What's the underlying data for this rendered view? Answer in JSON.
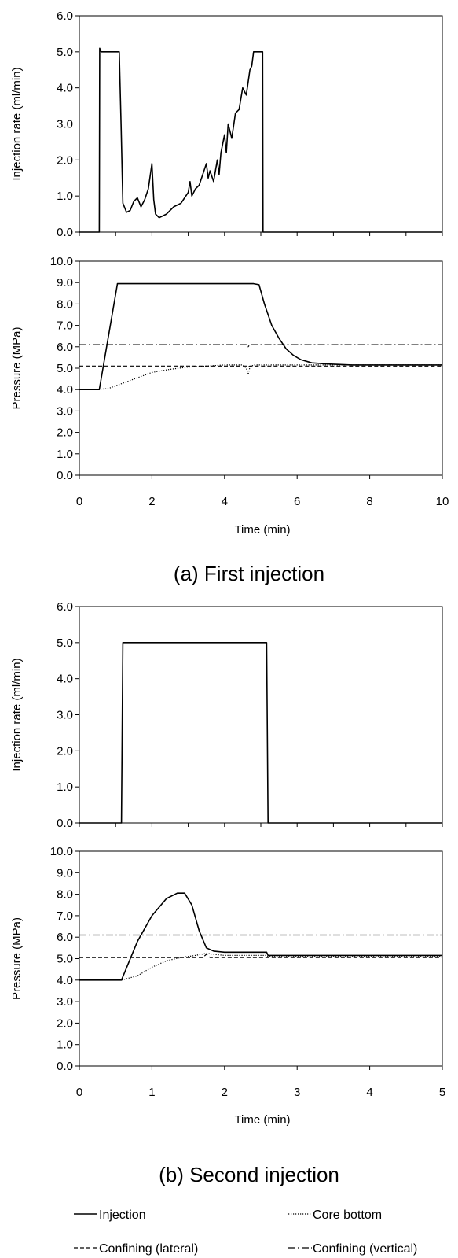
{
  "captions": {
    "a": "(a) First injection",
    "b": "(b) Second injection"
  },
  "legend": {
    "injection": "Injection",
    "core_bottom": "Core bottom",
    "confining_lateral": "Confining (lateral)",
    "confining_vertical": "Confining (vertical)"
  },
  "chart_data": [
    {
      "id": "a-rate",
      "type": "line",
      "ylabel": "Injection rate (ml/min)",
      "xlabel": "",
      "xlim": [
        0,
        10
      ],
      "ylim": [
        0,
        6
      ],
      "yticks": [
        "0.0",
        "1.0",
        "2.0",
        "3.0",
        "4.0",
        "5.0",
        "6.0"
      ],
      "xticks": [
        0,
        1,
        2,
        3,
        4,
        5,
        6,
        7,
        8,
        9,
        10
      ],
      "grid": false,
      "series": [
        {
          "key": "injection",
          "x": [
            0,
            0.55,
            0.56,
            0.6,
            1.1,
            1.15,
            1.2,
            1.3,
            1.4,
            1.5,
            1.6,
            1.7,
            1.8,
            1.9,
            2.0,
            2.05,
            2.1,
            2.2,
            2.3,
            2.4,
            2.5,
            2.6,
            2.7,
            2.8,
            2.9,
            3.0,
            3.05,
            3.1,
            3.2,
            3.3,
            3.4,
            3.5,
            3.55,
            3.6,
            3.7,
            3.8,
            3.85,
            3.9,
            4.0,
            4.05,
            4.1,
            4.2,
            4.3,
            4.4,
            4.5,
            4.6,
            4.7,
            4.75,
            4.8,
            5.05,
            5.06,
            5.1,
            10
          ],
          "y": [
            0,
            0,
            5.1,
            5.0,
            5.0,
            3.0,
            0.8,
            0.55,
            0.6,
            0.85,
            0.95,
            0.7,
            0.9,
            1.2,
            1.9,
            0.9,
            0.5,
            0.4,
            0.45,
            0.5,
            0.6,
            0.7,
            0.75,
            0.8,
            0.95,
            1.1,
            1.4,
            1.0,
            1.2,
            1.3,
            1.6,
            1.9,
            1.5,
            1.7,
            1.4,
            2.0,
            1.6,
            2.2,
            2.7,
            2.2,
            3.0,
            2.6,
            3.3,
            3.4,
            4.0,
            3.8,
            4.5,
            4.6,
            5.0,
            5.0,
            0,
            0,
            0
          ]
        }
      ]
    },
    {
      "id": "a-pressure",
      "type": "line",
      "ylabel": "Pressure (MPa)",
      "xlabel": "Time (min)",
      "xlim": [
        0,
        10
      ],
      "ylim": [
        0,
        10
      ],
      "yticks": [
        "0.0",
        "1.0",
        "2.0",
        "3.0",
        "4.0",
        "5.0",
        "6.0",
        "7.0",
        "8.0",
        "9.0",
        "10.0"
      ],
      "xticks": [
        "0",
        "2",
        "4",
        "6",
        "8",
        "10"
      ],
      "grid": false,
      "series": [
        {
          "key": "injection",
          "x": [
            0,
            0.55,
            1.05,
            1.5,
            2.0,
            3.0,
            4.0,
            4.8,
            4.95,
            5.1,
            5.3,
            5.5,
            5.7,
            5.9,
            6.1,
            6.4,
            6.8,
            7.5,
            10
          ],
          "y": [
            4.0,
            4.0,
            8.95,
            8.95,
            8.95,
            8.95,
            8.95,
            8.95,
            8.9,
            8.0,
            7.0,
            6.4,
            5.9,
            5.6,
            5.4,
            5.25,
            5.2,
            5.15,
            5.15
          ]
        },
        {
          "key": "core_bottom",
          "x": [
            0,
            0.5,
            0.8,
            1.2,
            1.6,
            2.0,
            2.5,
            3.0,
            3.5,
            4.0,
            4.5,
            4.6,
            4.65,
            4.7,
            4.8,
            5.0,
            6.0,
            10
          ],
          "y": [
            4.0,
            4.0,
            4.05,
            4.3,
            4.55,
            4.8,
            4.95,
            5.05,
            5.1,
            5.15,
            5.15,
            5.0,
            4.7,
            5.05,
            5.15,
            5.15,
            5.15,
            5.15
          ]
        },
        {
          "key": "confining_lateral",
          "x": [
            0,
            4.6,
            4.65,
            4.7,
            10
          ],
          "y": [
            5.1,
            5.1,
            5.05,
            5.1,
            5.1
          ]
        },
        {
          "key": "confining_vertical",
          "x": [
            0,
            4.6,
            4.65,
            4.7,
            10
          ],
          "y": [
            6.1,
            6.1,
            6.0,
            6.1,
            6.1
          ]
        }
      ]
    },
    {
      "id": "b-rate",
      "type": "line",
      "ylabel": "Injection rate (ml/min)",
      "xlabel": "",
      "xlim": [
        0,
        5
      ],
      "ylim": [
        0,
        6
      ],
      "yticks": [
        "0.0",
        "1.0",
        "2.0",
        "3.0",
        "4.0",
        "5.0",
        "6.0"
      ],
      "xticks": [
        0,
        0.5,
        1,
        1.5,
        2,
        2.5,
        3,
        3.5,
        4,
        4.5,
        5
      ],
      "grid": false,
      "series": [
        {
          "key": "injection",
          "x": [
            0,
            0.58,
            0.6,
            2.58,
            2.6,
            5
          ],
          "y": [
            0,
            0,
            5.0,
            5.0,
            0,
            0
          ]
        }
      ]
    },
    {
      "id": "b-pressure",
      "type": "line",
      "ylabel": "Pressure (MPa)",
      "xlabel": "Time (min)",
      "xlim": [
        0,
        5
      ],
      "ylim": [
        0,
        10
      ],
      "yticks": [
        "0.0",
        "1.0",
        "2.0",
        "3.0",
        "4.0",
        "5.0",
        "6.0",
        "7.0",
        "8.0",
        "9.0",
        "10.0"
      ],
      "xticks": [
        "0",
        "1",
        "2",
        "3",
        "4",
        "5"
      ],
      "grid": false,
      "series": [
        {
          "key": "injection",
          "x": [
            0,
            0.58,
            0.8,
            1.0,
            1.2,
            1.35,
            1.45,
            1.55,
            1.65,
            1.75,
            1.85,
            2.0,
            2.58,
            2.6,
            5
          ],
          "y": [
            4.0,
            4.0,
            5.8,
            7.0,
            7.8,
            8.05,
            8.05,
            7.5,
            6.3,
            5.5,
            5.35,
            5.3,
            5.3,
            5.15,
            5.15
          ]
        },
        {
          "key": "core_bottom",
          "x": [
            0,
            0.58,
            0.8,
            1.0,
            1.2,
            1.4,
            1.6,
            1.75,
            1.85,
            2.0,
            2.58,
            2.6,
            5
          ],
          "y": [
            4.0,
            4.0,
            4.2,
            4.6,
            4.9,
            5.05,
            5.15,
            5.25,
            5.2,
            5.15,
            5.15,
            5.1,
            5.1
          ]
        },
        {
          "key": "confining_lateral",
          "x": [
            0,
            1.7,
            1.75,
            1.8,
            5
          ],
          "y": [
            5.05,
            5.05,
            5.2,
            5.05,
            5.05
          ]
        },
        {
          "key": "confining_vertical",
          "x": [
            0,
            5
          ],
          "y": [
            6.1,
            6.1
          ]
        }
      ]
    }
  ]
}
